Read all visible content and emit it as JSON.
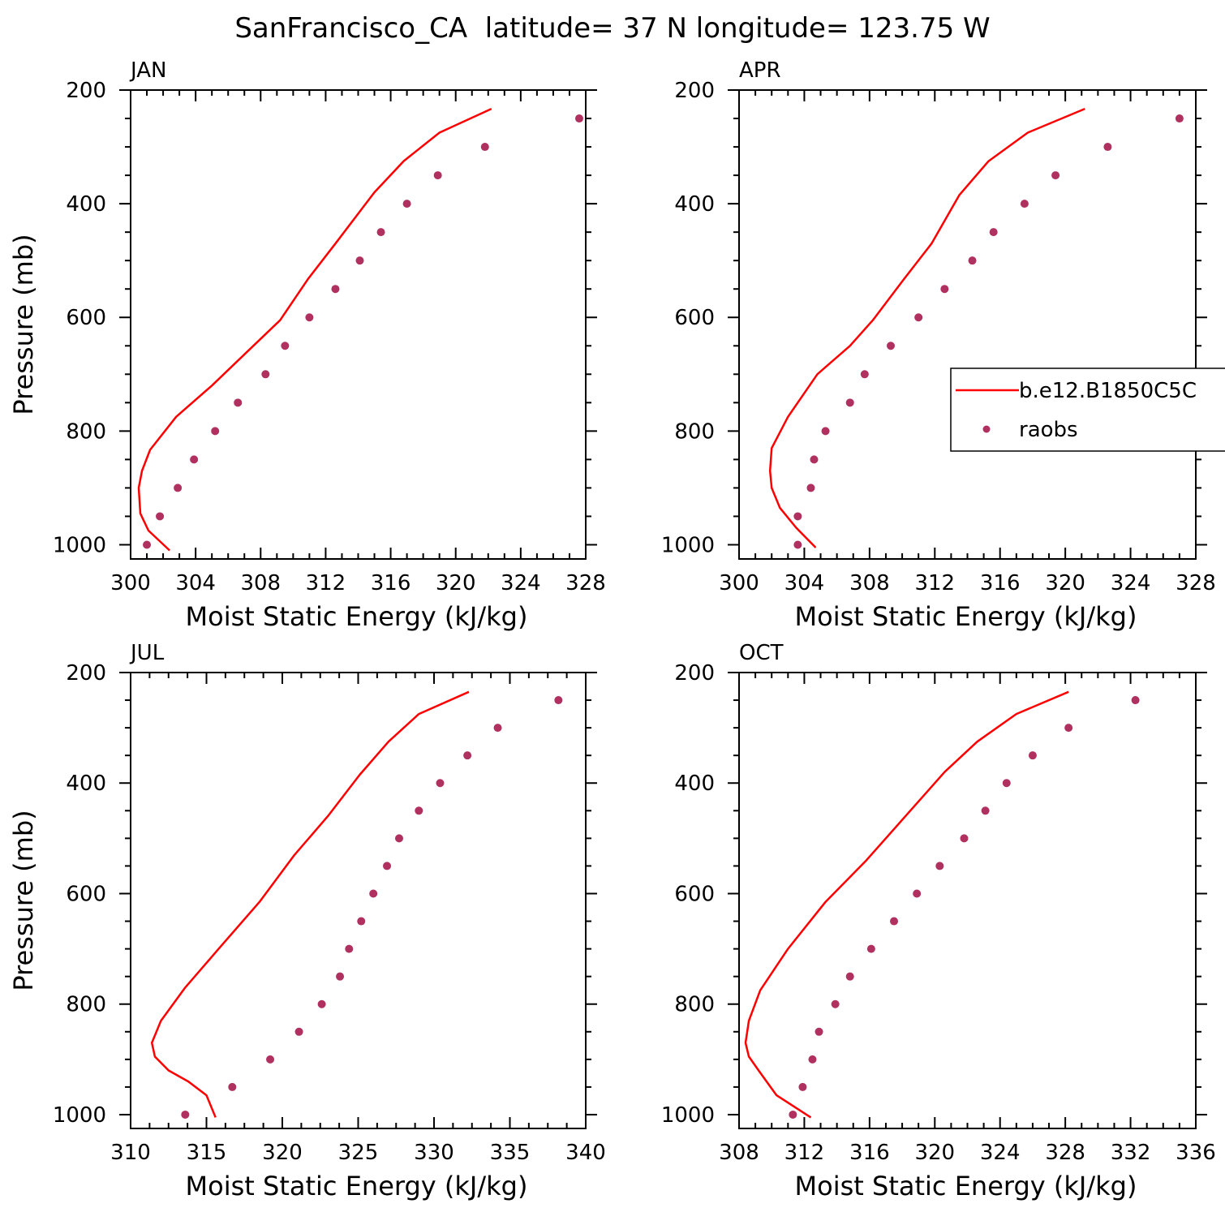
{
  "figure": {
    "title": "SanFrancisco_CA  latitude= 37 N longitude= 123.75 W"
  },
  "legend": {
    "model_label": "b.e12.B1850C5C",
    "obs_label": "raobs",
    "line_color": "#ff0000",
    "marker_color": "#b03060"
  },
  "chart_data": [
    {
      "type": "line",
      "panel": "JAN",
      "title": "JAN",
      "xlabel": "Moist Static Energy (kJ/kg)",
      "ylabel": "Pressure (mb)",
      "xlim": [
        300,
        328
      ],
      "ylim": [
        1025,
        200
      ],
      "xticks": [
        300,
        304,
        308,
        312,
        316,
        320,
        324,
        328
      ],
      "yticks": [
        200,
        400,
        600,
        800,
        1000
      ],
      "grid": false,
      "series": [
        {
          "name": "b.e12.B1850C5C",
          "style": "line",
          "x": [
            302.4,
            301.1,
            300.6,
            300.5,
            300.7,
            301.2,
            302.8,
            305.0,
            307.0,
            309.2,
            310.9,
            312.6,
            314.2,
            315.0,
            316.8,
            319.0,
            322.2
          ],
          "y": [
            1010,
            975,
            945,
            900,
            870,
            833,
            775,
            720,
            665,
            605,
            533,
            470,
            410,
            380,
            325,
            275,
            233
          ]
        },
        {
          "name": "raobs",
          "style": "markers",
          "x": [
            301.0,
            301.8,
            302.9,
            303.9,
            305.2,
            306.6,
            308.3,
            309.5,
            311.0,
            312.6,
            314.1,
            315.4,
            317.0,
            318.9,
            321.8,
            327.6
          ],
          "y": [
            1000,
            950,
            900,
            850,
            800,
            750,
            700,
            650,
            600,
            550,
            500,
            450,
            400,
            350,
            300,
            250
          ]
        }
      ]
    },
    {
      "type": "line",
      "panel": "APR",
      "title": "APR",
      "xlabel": "Moist Static Energy (kJ/kg)",
      "ylabel": "",
      "xlim": [
        300,
        328
      ],
      "ylim": [
        1025,
        200
      ],
      "xticks": [
        300,
        304,
        308,
        312,
        316,
        320,
        324,
        328
      ],
      "yticks": [
        200,
        400,
        600,
        800,
        1000
      ],
      "grid": false,
      "series": [
        {
          "name": "b.e12.B1850C5C",
          "style": "line",
          "x": [
            304.7,
            303.5,
            302.5,
            302.0,
            301.9,
            302.0,
            303.0,
            304.8,
            306.8,
            308.2,
            310.1,
            311.8,
            313.5,
            315.3,
            317.7,
            321.2
          ],
          "y": [
            1005,
            970,
            935,
            900,
            870,
            830,
            775,
            700,
            650,
            605,
            533,
            470,
            385,
            325,
            275,
            233
          ]
        },
        {
          "name": "raobs",
          "style": "markers",
          "x": [
            303.6,
            303.6,
            304.4,
            304.6,
            305.3,
            306.8,
            307.7,
            309.3,
            311.0,
            312.6,
            314.3,
            315.6,
            317.5,
            319.4,
            322.6,
            327.0
          ],
          "y": [
            1000,
            950,
            900,
            850,
            800,
            750,
            700,
            650,
            600,
            550,
            500,
            450,
            400,
            350,
            300,
            250
          ]
        }
      ]
    },
    {
      "type": "line",
      "panel": "JUL",
      "title": "JUL",
      "xlabel": "Moist Static Energy (kJ/kg)",
      "ylabel": "Pressure (mb)",
      "xlim": [
        310,
        340
      ],
      "ylim": [
        1025,
        200
      ],
      "xticks": [
        310,
        315,
        320,
        325,
        330,
        335,
        340
      ],
      "yticks": [
        200,
        400,
        600,
        800,
        1000
      ],
      "grid": false,
      "series": [
        {
          "name": "b.e12.B1850C5C",
          "style": "line",
          "x": [
            315.6,
            315.0,
            313.8,
            312.5,
            311.6,
            311.4,
            312.0,
            313.6,
            315.8,
            318.5,
            320.8,
            323.0,
            325.1,
            327.0,
            329.0,
            332.3
          ],
          "y": [
            1005,
            965,
            940,
            920,
            895,
            870,
            830,
            770,
            700,
            615,
            530,
            460,
            385,
            325,
            275,
            235
          ]
        },
        {
          "name": "raobs",
          "style": "markers",
          "x": [
            313.6,
            316.7,
            319.2,
            321.1,
            322.6,
            323.8,
            324.4,
            325.2,
            326.0,
            326.9,
            327.7,
            329.0,
            330.4,
            332.2,
            334.2,
            338.2
          ],
          "y": [
            1000,
            950,
            900,
            850,
            800,
            750,
            700,
            650,
            600,
            550,
            500,
            450,
            400,
            350,
            300,
            250
          ]
        }
      ]
    },
    {
      "type": "line",
      "panel": "OCT",
      "title": "OCT",
      "xlabel": "Moist Static Energy (kJ/kg)",
      "ylabel": "",
      "xlim": [
        308,
        336
      ],
      "ylim": [
        1025,
        200
      ],
      "xticks": [
        308,
        312,
        316,
        320,
        324,
        328,
        332,
        336
      ],
      "yticks": [
        200,
        400,
        600,
        800,
        1000
      ],
      "grid": false,
      "series": [
        {
          "name": "b.e12.B1850C5C",
          "style": "line",
          "x": [
            312.4,
            310.3,
            309.2,
            308.6,
            308.4,
            308.6,
            309.3,
            311.0,
            313.3,
            315.8,
            318.2,
            320.6,
            322.6,
            325.0,
            328.2
          ],
          "y": [
            1005,
            965,
            920,
            895,
            870,
            830,
            775,
            700,
            615,
            540,
            460,
            380,
            325,
            275,
            235
          ]
        },
        {
          "name": "raobs",
          "style": "markers",
          "x": [
            311.3,
            311.9,
            312.5,
            312.9,
            313.9,
            314.8,
            316.1,
            317.5,
            318.9,
            320.3,
            321.8,
            323.1,
            324.4,
            326.0,
            328.2,
            332.3
          ],
          "y": [
            1000,
            950,
            900,
            850,
            800,
            750,
            700,
            650,
            600,
            550,
            500,
            450,
            400,
            350,
            300,
            250
          ]
        }
      ]
    }
  ]
}
